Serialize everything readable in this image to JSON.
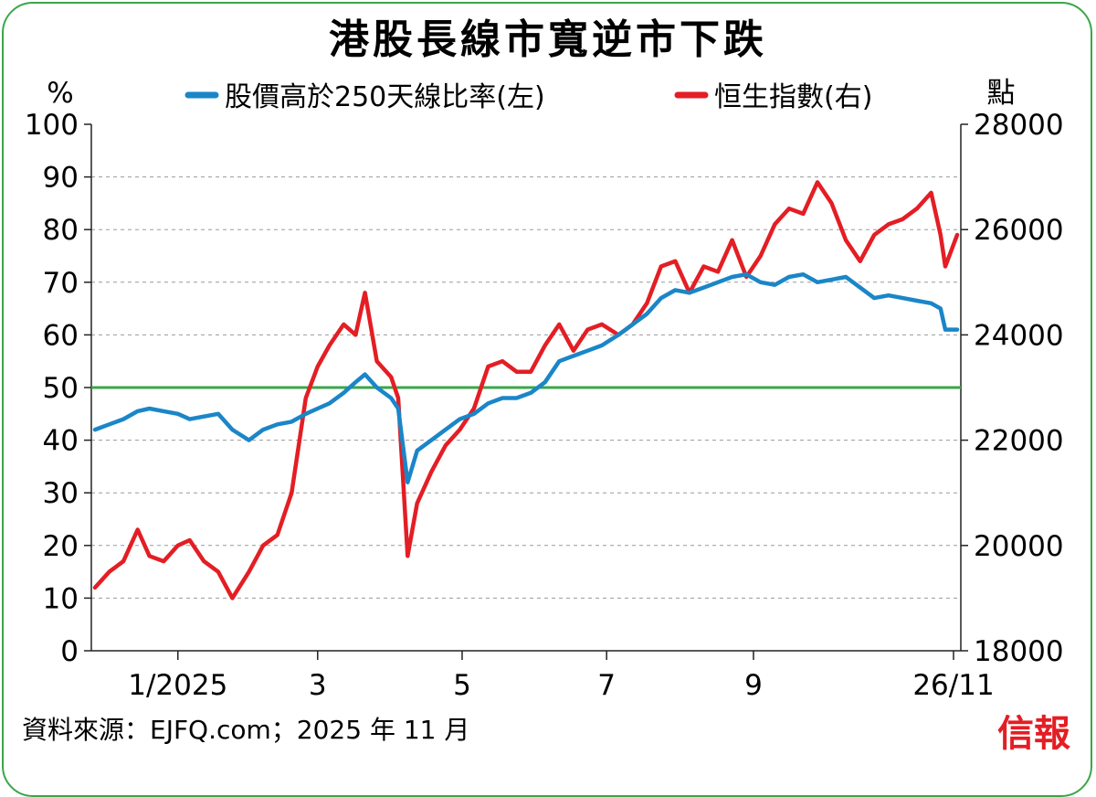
{
  "chart_data": {
    "type": "line",
    "title": "港股長線市寬逆市下跌",
    "left_axis": {
      "unit_label": "%",
      "ylim": [
        0,
        100
      ],
      "ticks": [
        "100",
        "90",
        "80",
        "70",
        "60",
        "50",
        "40",
        "30",
        "20",
        "10",
        "0"
      ]
    },
    "right_axis": {
      "unit_label": "點",
      "ylim": [
        18000,
        28000
      ],
      "ticks": [
        "28000",
        "26000",
        "24000",
        "22000",
        "20000",
        "18000"
      ]
    },
    "x_ticks": [
      "1/2025",
      "3",
      "5",
      "7",
      "9",
      "26/11"
    ],
    "grid": true,
    "legend_position": "top",
    "reference_line": {
      "value": 50,
      "axis": "left",
      "color": "#3aa64a"
    },
    "series": [
      {
        "name": "股價高於250天線比率(左)",
        "axis": "left",
        "color": "#1a86c8",
        "points": [
          [
            "2024-11-27",
            42
          ],
          [
            "2024-12-03",
            43
          ],
          [
            "2024-12-09",
            44
          ],
          [
            "2024-12-15",
            45.5
          ],
          [
            "2024-12-20",
            46
          ],
          [
            "2024-12-26",
            45.5
          ],
          [
            "2025-01-01",
            45
          ],
          [
            "2025-01-06",
            44
          ],
          [
            "2025-01-12",
            44.5
          ],
          [
            "2025-01-18",
            45
          ],
          [
            "2025-01-24",
            42
          ],
          [
            "2025-01-31",
            40
          ],
          [
            "2025-02-06",
            42
          ],
          [
            "2025-02-12",
            43
          ],
          [
            "2025-02-18",
            43.5
          ],
          [
            "2025-02-24",
            45
          ],
          [
            "2025-03-01",
            46
          ],
          [
            "2025-03-06",
            47
          ],
          [
            "2025-03-12",
            49
          ],
          [
            "2025-03-17",
            51
          ],
          [
            "2025-03-21",
            52.5
          ],
          [
            "2025-03-26",
            50
          ],
          [
            "2025-04-01",
            48
          ],
          [
            "2025-04-04",
            46
          ],
          [
            "2025-04-08",
            32
          ],
          [
            "2025-04-12",
            38
          ],
          [
            "2025-04-18",
            40
          ],
          [
            "2025-04-24",
            42
          ],
          [
            "2025-04-30",
            44
          ],
          [
            "2025-05-06",
            45
          ],
          [
            "2025-05-12",
            47
          ],
          [
            "2025-05-18",
            48
          ],
          [
            "2025-05-24",
            48
          ],
          [
            "2025-05-30",
            49
          ],
          [
            "2025-06-05",
            51
          ],
          [
            "2025-06-11",
            55
          ],
          [
            "2025-06-17",
            56
          ],
          [
            "2025-06-23",
            57
          ],
          [
            "2025-06-29",
            58
          ],
          [
            "2025-07-06",
            60
          ],
          [
            "2025-07-12",
            62
          ],
          [
            "2025-07-18",
            64
          ],
          [
            "2025-07-24",
            67
          ],
          [
            "2025-07-30",
            68.5
          ],
          [
            "2025-08-05",
            68
          ],
          [
            "2025-08-11",
            69
          ],
          [
            "2025-08-17",
            70
          ],
          [
            "2025-08-23",
            71
          ],
          [
            "2025-08-29",
            71.5
          ],
          [
            "2025-09-04",
            70
          ],
          [
            "2025-09-10",
            69.5
          ],
          [
            "2025-09-16",
            71
          ],
          [
            "2025-09-22",
            71.5
          ],
          [
            "2025-09-28",
            70
          ],
          [
            "2025-10-04",
            70.5
          ],
          [
            "2025-10-10",
            71
          ],
          [
            "2025-10-16",
            69
          ],
          [
            "2025-10-22",
            67
          ],
          [
            "2025-10-28",
            67.5
          ],
          [
            "2025-11-03",
            67
          ],
          [
            "2025-11-09",
            66.5
          ],
          [
            "2025-11-15",
            66
          ],
          [
            "2025-11-19",
            65
          ],
          [
            "2025-11-21",
            61
          ],
          [
            "2025-11-26",
            61
          ]
        ]
      },
      {
        "name": "恒生指數(右)",
        "axis": "right",
        "color": "#e31e24",
        "points": [
          [
            "2024-11-27",
            19200
          ],
          [
            "2024-12-03",
            19500
          ],
          [
            "2024-12-09",
            19700
          ],
          [
            "2024-12-15",
            20300
          ],
          [
            "2024-12-20",
            19800
          ],
          [
            "2024-12-26",
            19700
          ],
          [
            "2025-01-01",
            20000
          ],
          [
            "2025-01-06",
            20100
          ],
          [
            "2025-01-12",
            19700
          ],
          [
            "2025-01-18",
            19500
          ],
          [
            "2025-01-24",
            19000
          ],
          [
            "2025-01-31",
            19500
          ],
          [
            "2025-02-06",
            20000
          ],
          [
            "2025-02-12",
            20200
          ],
          [
            "2025-02-18",
            21000
          ],
          [
            "2025-02-24",
            22800
          ],
          [
            "2025-03-01",
            23400
          ],
          [
            "2025-03-06",
            23800
          ],
          [
            "2025-03-12",
            24200
          ],
          [
            "2025-03-17",
            24000
          ],
          [
            "2025-03-21",
            24800
          ],
          [
            "2025-03-26",
            23500
          ],
          [
            "2025-04-01",
            23200
          ],
          [
            "2025-04-04",
            22800
          ],
          [
            "2025-04-08",
            19800
          ],
          [
            "2025-04-12",
            20800
          ],
          [
            "2025-04-18",
            21400
          ],
          [
            "2025-04-24",
            21900
          ],
          [
            "2025-04-30",
            22200
          ],
          [
            "2025-05-06",
            22600
          ],
          [
            "2025-05-12",
            23400
          ],
          [
            "2025-05-18",
            23500
          ],
          [
            "2025-05-24",
            23300
          ],
          [
            "2025-05-30",
            23300
          ],
          [
            "2025-06-05",
            23800
          ],
          [
            "2025-06-11",
            24200
          ],
          [
            "2025-06-17",
            23700
          ],
          [
            "2025-06-23",
            24100
          ],
          [
            "2025-06-29",
            24200
          ],
          [
            "2025-07-06",
            24000
          ],
          [
            "2025-07-12",
            24200
          ],
          [
            "2025-07-18",
            24600
          ],
          [
            "2025-07-24",
            25300
          ],
          [
            "2025-07-30",
            25400
          ],
          [
            "2025-08-05",
            24800
          ],
          [
            "2025-08-11",
            25300
          ],
          [
            "2025-08-17",
            25200
          ],
          [
            "2025-08-23",
            25800
          ],
          [
            "2025-08-29",
            25100
          ],
          [
            "2025-09-04",
            25500
          ],
          [
            "2025-09-10",
            26100
          ],
          [
            "2025-09-16",
            26400
          ],
          [
            "2025-09-22",
            26300
          ],
          [
            "2025-09-28",
            26900
          ],
          [
            "2025-10-04",
            26500
          ],
          [
            "2025-10-10",
            25800
          ],
          [
            "2025-10-16",
            25400
          ],
          [
            "2025-10-22",
            25900
          ],
          [
            "2025-10-28",
            26100
          ],
          [
            "2025-11-03",
            26200
          ],
          [
            "2025-11-09",
            26400
          ],
          [
            "2025-11-15",
            26700
          ],
          [
            "2025-11-19",
            25900
          ],
          [
            "2025-11-21",
            25300
          ],
          [
            "2025-11-26",
            25900
          ]
        ]
      }
    ]
  },
  "footer": {
    "source": "資料來源：EJFQ.com；2025 年 11 月",
    "brand": "信報"
  }
}
